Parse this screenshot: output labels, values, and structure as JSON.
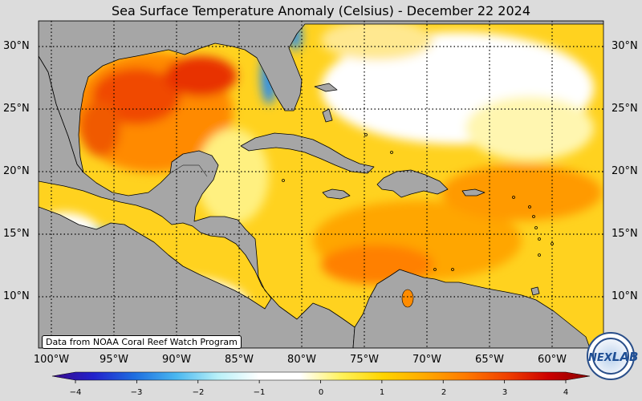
{
  "title": "Sea Surface Temperature Anomaly (Celsius) - December 22 2024",
  "credit": "Data from NOAA Coral Reef Watch Program",
  "logo_text": "NEXLAB",
  "lat_labels": [
    "30°N",
    "25°N",
    "20°N",
    "15°N",
    "10°N"
  ],
  "lon_labels": [
    "100°W",
    "95°W",
    "90°W",
    "85°W",
    "80°W",
    "75°W",
    "70°W",
    "65°W",
    "60°W"
  ],
  "colorbar": {
    "min": -4.5,
    "max": 4.5,
    "ticks": [
      "−4",
      "−3",
      "−2",
      "−1",
      "0",
      "1",
      "2",
      "3",
      "4"
    ],
    "colors": [
      "#3a0a8a",
      "#2222cc",
      "#1e6fe0",
      "#49b7f0",
      "#b8f0f8",
      "#ffffff",
      "#ffffff",
      "#fff25a",
      "#ffd400",
      "#ffaa00",
      "#ff7a00",
      "#f04000",
      "#cc0000",
      "#880000"
    ]
  },
  "colors": {
    "land": "#a6a6a6",
    "background": "#dcdcdc",
    "ocean_base": "#ffd21f"
  }
}
